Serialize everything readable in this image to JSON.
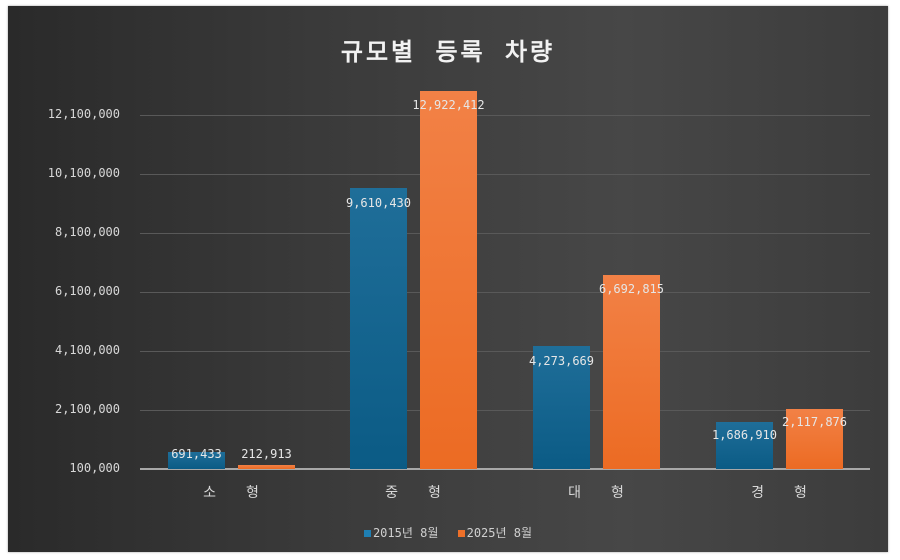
{
  "chart_data": {
    "type": "bar",
    "title": "규모별 등록 차량",
    "xlabel": "",
    "ylabel": "",
    "categories": [
      "소 형",
      "중 형",
      "대 형",
      "경 형"
    ],
    "series": [
      {
        "name": "2015년 8월",
        "color": "#0e5f8a",
        "values": [
          691433,
          9610430,
          4273669,
          1686910
        ]
      },
      {
        "name": "2025년 8월",
        "color": "#ee7029",
        "values": [
          212913,
          12922412,
          6692815,
          2117876
        ]
      }
    ],
    "ylim": [
      100000,
      12100000
    ],
    "yticks": [
      "100,000",
      "2,100,000",
      "4,100,000",
      "6,100,000",
      "8,100,000",
      "10,100,000",
      "12,100,000"
    ],
    "data_labels": {
      "s1": [
        "691,433",
        "9,610,430",
        "4,273,669",
        "1,686,910"
      ],
      "s2": [
        "212,913",
        "12,922,412",
        "6,692,815",
        "2,117,876"
      ]
    },
    "grid": true,
    "legend_position": "bottom"
  },
  "legend": {
    "s1": "2015년 8월",
    "s2": "2025년 8월"
  },
  "colors": {
    "background": "#3a3a3a",
    "series1": "#0e5f8a",
    "series2": "#ee7029"
  }
}
